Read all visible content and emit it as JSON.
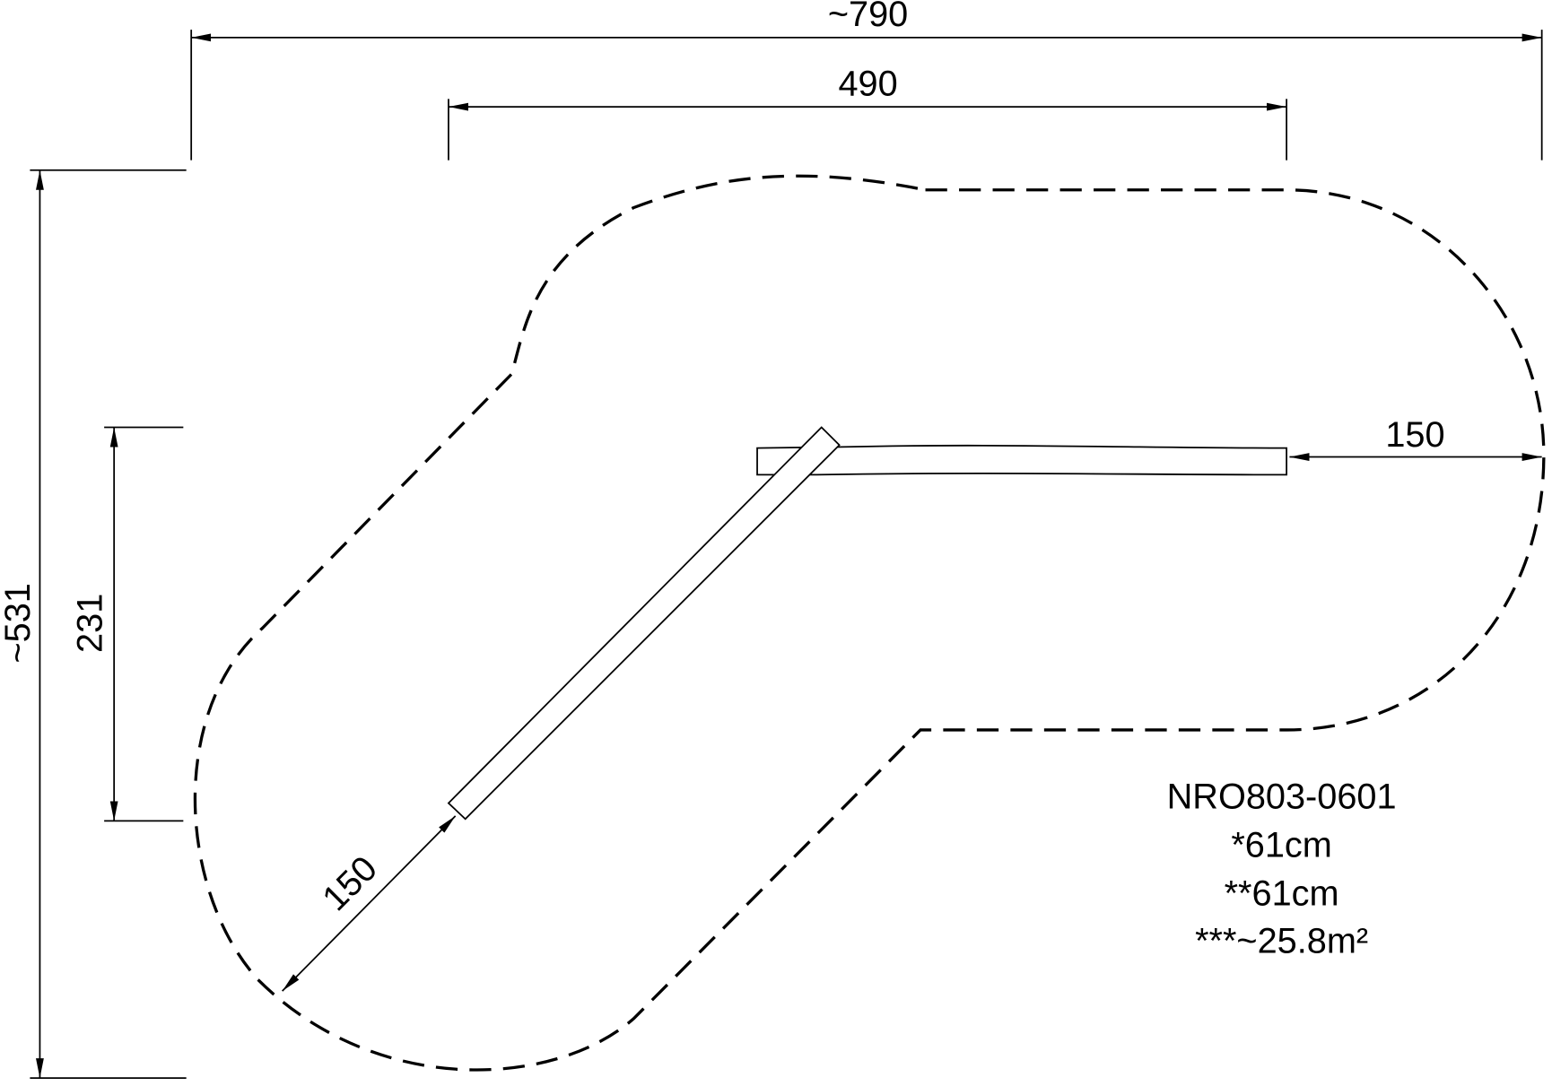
{
  "dimensions": {
    "overall_width": "~790",
    "inner_width": "490",
    "overall_depth": "~531",
    "inner_depth": "231",
    "clearance_right": "150",
    "clearance_diagonal": "150"
  },
  "label": {
    "model": "NRO803-0601",
    "lines": [
      "*61cm",
      "**61cm",
      "***~25.8m²"
    ]
  }
}
